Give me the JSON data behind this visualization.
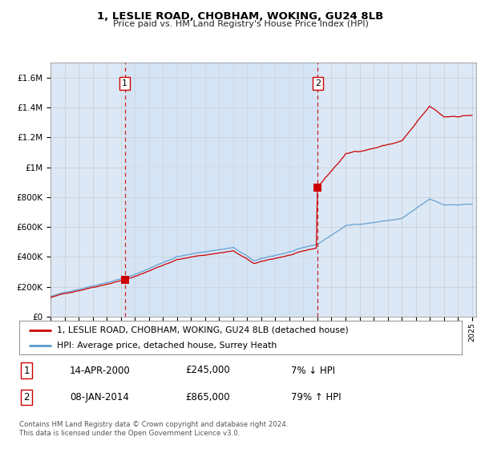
{
  "title": "1, LESLIE ROAD, CHOBHAM, WOKING, GU24 8LB",
  "subtitle": "Price paid vs. HM Land Registry's House Price Index (HPI)",
  "ylabel_ticks": [
    "£0",
    "£200K",
    "£400K",
    "£600K",
    "£800K",
    "£1M",
    "£1.2M",
    "£1.4M",
    "£1.6M"
  ],
  "ylim": [
    0,
    1700000
  ],
  "yticks": [
    0,
    200000,
    400000,
    600000,
    800000,
    1000000,
    1200000,
    1400000,
    1600000
  ],
  "line1_color": "#cc0000",
  "line2_color": "#5599cc",
  "vline_color": "#cc0000",
  "grid_color": "#bbbbbb",
  "bg_color": "#dce8f5",
  "bg_outer_color": "#eef4fb",
  "legend_label1": "1, LESLIE ROAD, CHOBHAM, WOKING, GU24 8LB (detached house)",
  "legend_label2": "HPI: Average price, detached house, Surrey Heath",
  "sale1_date": "14-APR-2000",
  "sale1_price": "£245,000",
  "sale1_hpi": "7% ↓ HPI",
  "sale2_date": "08-JAN-2014",
  "sale2_price": "£865,000",
  "sale2_hpi": "79% ↑ HPI",
  "footer": "Contains HM Land Registry data © Crown copyright and database right 2024.\nThis data is licensed under the Open Government Licence v3.0.",
  "sale1_x": 2000.29,
  "sale1_y": 245000,
  "sale2_x": 2014.03,
  "sale2_y": 865000,
  "xlim_left": 1995.0,
  "xlim_right": 2025.3
}
